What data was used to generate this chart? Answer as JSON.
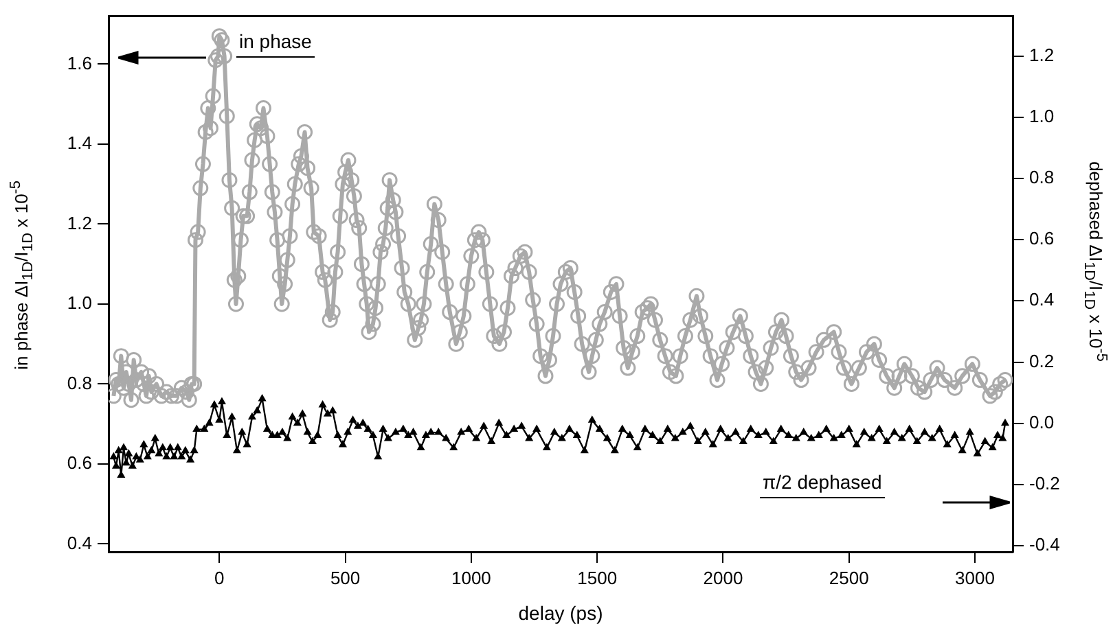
{
  "chart_data": {
    "type": "line",
    "xlabel": "delay (ps)",
    "ylabel": "in phase ΔI$_{1D}$/I$_{1D}$ x 10$^{-5}$",
    "y2label": "dephased ΔI$_{1D}$/I$_{1D}$ x 10$^{-5}$",
    "xlim": [
      -440,
      3150
    ],
    "xticks": [
      0,
      500,
      1000,
      1500,
      2000,
      2500,
      3000
    ],
    "ylim": [
      0.38,
      1.72
    ],
    "yticks": [
      0.4,
      0.6,
      0.8,
      {
        "value": 1,
        "label": "1.0"
      },
      1.2,
      1.4,
      1.6
    ],
    "y2lim": [
      -0.42,
      1.33
    ],
    "y2ticks": [
      -0.4,
      -0.2,
      {
        "value": 0,
        "label": "0.0"
      },
      0.2,
      0.4,
      0.6,
      0.8,
      {
        "value": 1,
        "label": "1.0"
      },
      1.2
    ],
    "grid": false,
    "legend": false,
    "series": [
      {
        "name": "in phase",
        "color": "#aaaaaa",
        "marker": "circle",
        "axis": "y",
        "x": [
          -420,
          -410,
          -400,
          -390,
          -380,
          -370,
          -360,
          -350,
          -340,
          -330,
          -310,
          -300,
          -290,
          -280,
          -270,
          -250,
          -230,
          -210,
          -190,
          -170,
          -150,
          -130,
          -120,
          -110,
          -100,
          -95,
          -85,
          -75,
          -65,
          -55,
          -45,
          -35,
          -25,
          -15,
          -5,
          0,
          10,
          20,
          30,
          40,
          50,
          60,
          66,
          75,
          85,
          95,
          110,
          120,
          130,
          140,
          150,
          165,
          175,
          190,
          200,
          210,
          220,
          230,
          240,
          248,
          260,
          270,
          280,
          290,
          300,
          315,
          325,
          339,
          350,
          365,
          375,
          395,
          410,
          420,
          439,
          450,
          460,
          470,
          480,
          490,
          500,
          512,
          525,
          535,
          545,
          555,
          565,
          575,
          585,
          594,
          610,
          620,
          630,
          640,
          650,
          660,
          668,
          676,
          690,
          700,
          710,
          725,
          735,
          750,
          776,
          790,
          800,
          812,
          825,
          840,
          854,
          870,
          885,
          900,
          915,
          940,
          955,
          970,
          985,
          1000,
          1015,
          1030,
          1045,
          1060,
          1075,
          1090,
          1112,
          1130,
          1145,
          1160,
          1175,
          1195,
          1213,
          1230,
          1245,
          1260,
          1275,
          1295,
          1310,
          1325,
          1340,
          1355,
          1375,
          1394,
          1410,
          1425,
          1440,
          1467,
          1480,
          1495,
          1510,
          1530,
          1555,
          1576,
          1590,
          1605,
          1622,
          1640,
          1660,
          1680,
          1700,
          1713,
          1730,
          1750,
          1770,
          1790,
          1813,
          1830,
          1850,
          1870,
          1895,
          1910,
          1930,
          1950,
          1977,
          1995,
          2015,
          2040,
          2068,
          2090,
          2110,
          2130,
          2150,
          2170,
          2190,
          2210,
          2232,
          2250,
          2270,
          2290,
          2310,
          2340,
          2370,
          2400,
          2440,
          2460,
          2480,
          2510,
          2540,
          2570,
          2600,
          2620,
          2650,
          2680,
          2700,
          2720,
          2750,
          2775,
          2800,
          2825,
          2850,
          2880,
          2920,
          2950,
          2990,
          3020,
          3060,
          3080,
          3100,
          3120
        ],
        "values": [
          0.77,
          0.81,
          0.8,
          0.87,
          0.79,
          0.83,
          0.8,
          0.76,
          0.86,
          0.81,
          0.83,
          0.8,
          0.77,
          0.82,
          0.78,
          0.8,
          0.77,
          0.78,
          0.77,
          0.77,
          0.79,
          0.78,
          0.76,
          0.8,
          0.8,
          1.16,
          1.18,
          1.29,
          1.35,
          1.43,
          1.49,
          1.44,
          1.52,
          1.61,
          1.62,
          1.67,
          1.66,
          1.62,
          1.47,
          1.31,
          1.24,
          1.06,
          1.0,
          1.07,
          1.16,
          1.22,
          1.22,
          1.28,
          1.36,
          1.41,
          1.45,
          1.44,
          1.49,
          1.42,
          1.35,
          1.28,
          1.23,
          1.16,
          1.07,
          1.0,
          1.05,
          1.11,
          1.17,
          1.25,
          1.3,
          1.35,
          1.37,
          1.43,
          1.34,
          1.29,
          1.18,
          1.17,
          1.08,
          1.06,
          0.96,
          0.98,
          1.08,
          1.13,
          1.22,
          1.3,
          1.33,
          1.36,
          1.31,
          1.27,
          1.21,
          1.19,
          1.1,
          1.05,
          1.0,
          0.93,
          0.95,
          0.99,
          1.05,
          1.13,
          1.15,
          1.19,
          1.24,
          1.31,
          1.26,
          1.23,
          1.17,
          1.09,
          1.03,
          1.0,
          0.91,
          0.94,
          0.96,
          1.0,
          1.08,
          1.15,
          1.25,
          1.21,
          1.13,
          1.05,
          0.98,
          0.9,
          0.93,
          0.97,
          1.05,
          1.12,
          1.16,
          1.18,
          1.16,
          1.08,
          1.0,
          0.92,
          0.9,
          0.93,
          0.99,
          1.07,
          1.09,
          1.12,
          1.13,
          1.08,
          1.01,
          0.95,
          0.87,
          0.82,
          0.86,
          0.92,
          1.0,
          1.05,
          1.08,
          1.09,
          1.03,
          0.97,
          0.9,
          0.83,
          0.87,
          0.91,
          0.95,
          0.98,
          1.03,
          1.05,
          0.97,
          0.89,
          0.84,
          0.88,
          0.92,
          0.98,
          0.99,
          1.0,
          0.96,
          0.91,
          0.87,
          0.83,
          0.82,
          0.87,
          0.92,
          0.96,
          1.02,
          0.97,
          0.92,
          0.87,
          0.81,
          0.85,
          0.89,
          0.93,
          0.97,
          0.92,
          0.87,
          0.83,
          0.8,
          0.84,
          0.89,
          0.93,
          0.96,
          0.92,
          0.87,
          0.83,
          0.81,
          0.84,
          0.88,
          0.91,
          0.93,
          0.88,
          0.84,
          0.8,
          0.84,
          0.88,
          0.9,
          0.86,
          0.82,
          0.79,
          0.82,
          0.85,
          0.82,
          0.79,
          0.78,
          0.81,
          0.84,
          0.81,
          0.79,
          0.82,
          0.85,
          0.81,
          0.77,
          0.78,
          0.8,
          0.81
        ]
      },
      {
        "name": "π/2 dephased",
        "color": "#000000",
        "marker": "triangle",
        "axis": "y2",
        "x": [
          -420,
          -410,
          -400,
          -390,
          -380,
          -370,
          -360,
          -345,
          -330,
          -315,
          -300,
          -285,
          -270,
          -255,
          -240,
          -225,
          -210,
          -195,
          -180,
          -165,
          -150,
          -135,
          -115,
          -100,
          -90,
          -60,
          -40,
          -20,
          0,
          10,
          30,
          50,
          70,
          90,
          110,
          130,
          150,
          170,
          190,
          210,
          230,
          250,
          270,
          290,
          310,
          330,
          350,
          370,
          390,
          410,
          430,
          450,
          470,
          490,
          510,
          530,
          550,
          570,
          590,
          610,
          630,
          650,
          670,
          700,
          730,
          750,
          770,
          800,
          820,
          840,
          870,
          900,
          930,
          960,
          990,
          1020,
          1050,
          1080,
          1110,
          1140,
          1170,
          1200,
          1230,
          1260,
          1300,
          1330,
          1360,
          1390,
          1420,
          1450,
          1480,
          1510,
          1540,
          1570,
          1600,
          1630,
          1660,
          1690,
          1720,
          1750,
          1780,
          1810,
          1840,
          1870,
          1900,
          1930,
          1960,
          1990,
          2020,
          2050,
          2080,
          2110,
          2140,
          2170,
          2200,
          2230,
          2260,
          2290,
          2320,
          2350,
          2380,
          2410,
          2440,
          2470,
          2500,
          2530,
          2560,
          2590,
          2620,
          2650,
          2680,
          2710,
          2740,
          2770,
          2800,
          2830,
          2860,
          2890,
          2920,
          2950,
          2980,
          3010,
          3040,
          3070,
          3090,
          3110,
          3120
        ],
        "values": [
          -0.11,
          -0.14,
          -0.09,
          -0.17,
          -0.08,
          -0.13,
          -0.1,
          -0.14,
          -0.11,
          -0.12,
          -0.07,
          -0.11,
          -0.09,
          -0.05,
          -0.1,
          -0.08,
          -0.11,
          -0.08,
          -0.11,
          -0.08,
          -0.11,
          -0.09,
          -0.12,
          -0.09,
          -0.02,
          -0.02,
          0.0,
          0.06,
          0.01,
          0.07,
          -0.04,
          0.02,
          -0.09,
          -0.03,
          -0.07,
          0.02,
          0.04,
          0.08,
          -0.02,
          -0.04,
          -0.04,
          -0.03,
          -0.05,
          0.02,
          0.0,
          0.03,
          -0.03,
          -0.06,
          -0.04,
          0.06,
          0.03,
          0.04,
          -0.04,
          -0.07,
          -0.03,
          0.01,
          -0.01,
          0.0,
          -0.02,
          -0.04,
          -0.11,
          -0.02,
          -0.05,
          -0.03,
          -0.02,
          -0.04,
          -0.03,
          -0.08,
          -0.04,
          -0.03,
          -0.03,
          -0.05,
          -0.08,
          -0.03,
          -0.02,
          -0.05,
          -0.01,
          -0.06,
          0.0,
          -0.04,
          -0.02,
          -0.01,
          -0.05,
          -0.02,
          -0.08,
          -0.03,
          -0.05,
          -0.02,
          -0.04,
          -0.09,
          0.01,
          -0.02,
          -0.05,
          -0.09,
          -0.02,
          -0.04,
          -0.08,
          -0.02,
          -0.04,
          -0.06,
          -0.02,
          -0.05,
          -0.03,
          -0.01,
          -0.06,
          -0.03,
          -0.07,
          -0.02,
          -0.05,
          -0.03,
          -0.06,
          -0.02,
          -0.04,
          -0.03,
          -0.06,
          -0.02,
          -0.04,
          -0.05,
          -0.03,
          -0.05,
          -0.04,
          -0.02,
          -0.05,
          -0.04,
          -0.02,
          -0.07,
          -0.03,
          -0.05,
          -0.02,
          -0.06,
          -0.03,
          -0.05,
          -0.02,
          -0.06,
          -0.03,
          -0.05,
          -0.02,
          -0.07,
          -0.04,
          -0.09,
          -0.03,
          -0.1,
          -0.06,
          -0.08,
          -0.04,
          -0.05,
          0.0
        ]
      }
    ]
  }
}
